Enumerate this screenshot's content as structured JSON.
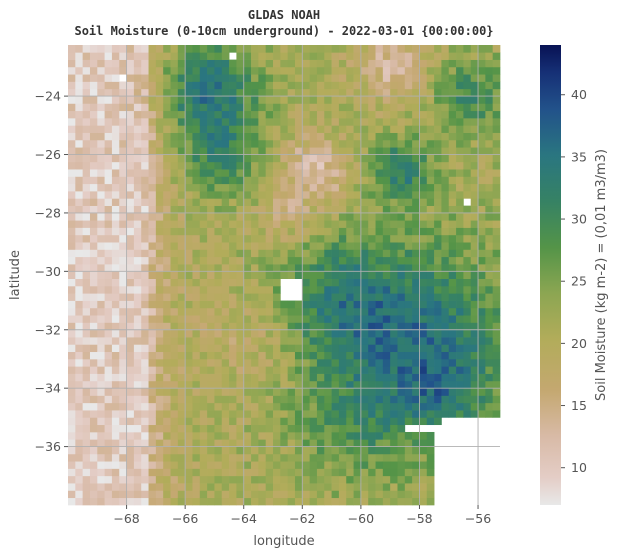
{
  "chart_data": {
    "type": "heatmap",
    "title": "GLDAS NOAH",
    "subtitle": "Soil Moisture (0-10cm underground) - 2022-03-01 {00:00:00}",
    "xlabel": "longitude",
    "ylabel": "latitude",
    "colorbar_label": "Soil Moisture (kg m-2) = (0,01 m3/m3)",
    "xlim": [
      -70,
      -55.25
    ],
    "ylim": [
      -38,
      -22.25
    ],
    "x_ticks": [
      -68,
      -66,
      -64,
      -62,
      -60,
      -58,
      -56
    ],
    "x_tick_labels": [
      "−68",
      "−66",
      "−64",
      "−62",
      "−60",
      "−58",
      "−56"
    ],
    "y_ticks": [
      -24,
      -26,
      -28,
      -30,
      -32,
      -34,
      -36
    ],
    "y_tick_labels": [
      "−24",
      "−26",
      "−28",
      "−30",
      "−32",
      "−34",
      "−36"
    ],
    "colorbar_range": [
      7,
      44
    ],
    "colorbar_ticks": [
      10,
      15,
      20,
      25,
      30,
      35,
      40
    ],
    "colorbar_tick_labels": [
      "10",
      "15",
      "20",
      "25",
      "30",
      "35",
      "40"
    ],
    "colormap": "gist_earth_r",
    "grid": true,
    "cell_size_deg": 0.25,
    "missing_regions": [
      "ocean south-east of -58 lon / -35 lat",
      "small gaps near -62.5,-30 and -64.5,-22.7"
    ]
  }
}
